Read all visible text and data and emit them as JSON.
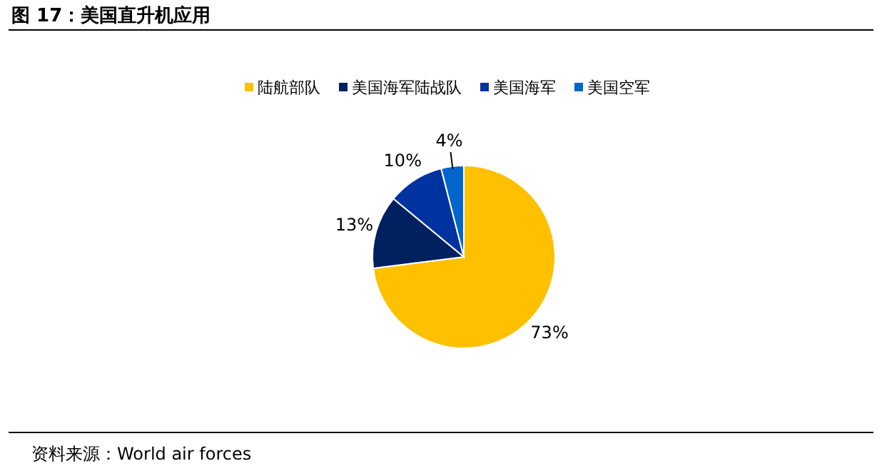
{
  "chart_data": {
    "type": "pie",
    "title": "图 17：美国直升机应用",
    "categories": [
      "陆航部队",
      "美国海军陆战队",
      "美国海军",
      "美国空军"
    ],
    "values": [
      73,
      13,
      10,
      4
    ],
    "colors": [
      "#ffc000",
      "#002060",
      "#0033a0",
      "#0066cc"
    ],
    "value_labels": [
      "73%",
      "13%",
      "10%",
      "4%"
    ],
    "legend": "top",
    "annotations": [
      "资料来源：World air forces"
    ]
  }
}
